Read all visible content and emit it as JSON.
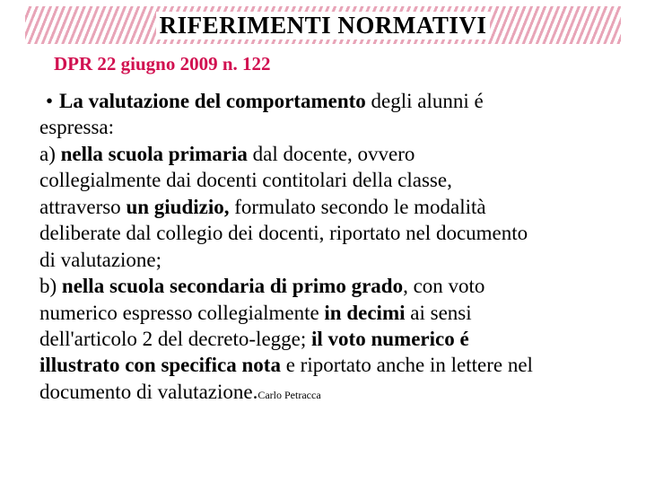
{
  "title": "RIFERIMENTI NORMATIVI",
  "subtitle": "DPR  22 giugno 2009 n. 122",
  "content": {
    "bullet": "•",
    "line1_bold": "La valutazione del comportamento",
    "line1_plain": " degli alunni é",
    "line2": "espressa:",
    "line3a": "a) ",
    "line3_bold": "nella scuola primaria",
    "line3b": " dal docente, ovvero",
    "line4": "collegialmente dai docenti contitolari della classe,",
    "line5a": "attraverso ",
    "line5_bold": "un giudizio,",
    "line5b": " formulato secondo le modalità",
    "line6": "deliberate dal collegio dei docenti, riportato nel documento",
    "line7": "di valutazione;",
    "line8a": "b) ",
    "line8_bold": "nella scuola secondaria di primo grado",
    "line8b": ", con voto",
    "line9a": "numerico espresso  collegialmente ",
    "line9_bold": "in decimi",
    "line9b": " ai sensi",
    "line10a": "dell'articolo 2 del decreto-legge; ",
    "line10_bold": "il voto numerico é",
    "line11_bold": "illustrato con specifica nota",
    "line11b": " e riportato anche in lettere nel",
    "line12": "documento di valutazione."
  },
  "footer": "Carlo  Petracca",
  "colors": {
    "subtitle_color": "#d11050",
    "text_color": "#000000",
    "pattern_color": "#e8a5b8",
    "background": "#ffffff"
  },
  "typography": {
    "title_fontsize": 27,
    "subtitle_fontsize": 21,
    "body_fontsize": 23,
    "footer_fontsize": 12,
    "font_family": "Times New Roman"
  }
}
